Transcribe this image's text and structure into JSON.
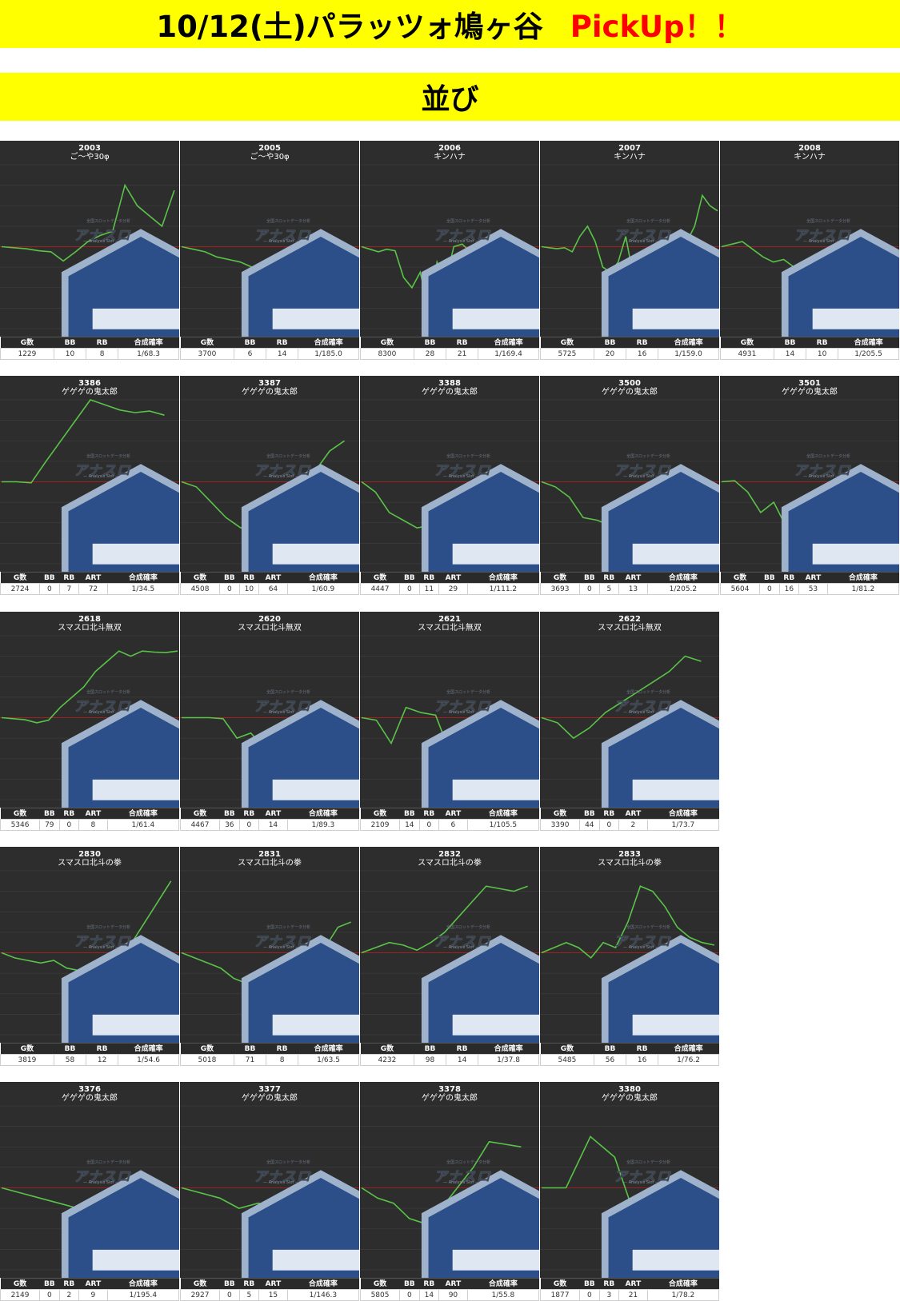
{
  "header": {
    "title": "10/12(土)パラッツォ鳩ヶ谷",
    "title_highlight": "PickUp！！",
    "subtitle": "並び"
  },
  "colors": {
    "banner_bg": "#ffff00",
    "highlight": "#ff0000",
    "chart_bg": "#2d2d2d",
    "line": "#59c447",
    "baseline": "#a02020"
  },
  "watermark": {
    "brand": "アナスロ",
    "tagline": "— Analysis Slot —",
    "top": "全国スロットデータ分析"
  },
  "groups": [
    {
      "headers": [
        "G数",
        "BB",
        "RB",
        "合成確率"
      ],
      "machines": [
        {
          "number": "2003",
          "name": "ご〜や30φ",
          "stats": [
            "1229",
            "10",
            "8",
            "1/68.3"
          ],
          "chart_data": {
            "type": "line",
            "y": [
              0,
              -2,
              -4,
              -8,
              -10,
              -28,
              -10,
              10,
              22,
              30,
              120,
              80,
              60,
              40,
              110
            ]
          }
        },
        {
          "number": "2005",
          "name": "ご〜や30φ",
          "stats": [
            "3700",
            "6",
            "14",
            "1/185.0"
          ],
          "chart_data": {
            "type": "line",
            "y": [
              0,
              -5,
              -10,
              -20,
              -25,
              -30,
              -40,
              -55,
              -45,
              -50,
              -60,
              -75,
              -90,
              -110,
              -140,
              -160
            ]
          }
        },
        {
          "number": "2006",
          "name": "キンハナ",
          "stats": [
            "8300",
            "28",
            "21",
            "1/169.4"
          ],
          "chart_data": {
            "type": "line",
            "y": [
              0,
              -5,
              -10,
              -5,
              -8,
              -60,
              -80,
              -50,
              -120,
              -30,
              -70,
              0,
              5,
              -10,
              -40,
              -20,
              -50,
              -30,
              -60,
              -70,
              -100,
              -60
            ]
          }
        },
        {
          "number": "2007",
          "name": "キンハナ",
          "stats": [
            "5725",
            "20",
            "16",
            "1/159.0"
          ],
          "chart_data": {
            "type": "line",
            "y": [
              0,
              -2,
              -4,
              -2,
              -10,
              20,
              40,
              10,
              -40,
              -50,
              -30,
              20,
              -60,
              -80,
              -60,
              -90,
              -70,
              -40,
              -50,
              10,
              40,
              100,
              80,
              70
            ]
          }
        },
        {
          "number": "2008",
          "name": "キンハナ",
          "stats": [
            "4931",
            "14",
            "10",
            "1/205.5"
          ],
          "chart_data": {
            "type": "line",
            "y": [
              0,
              5,
              10,
              -5,
              -20,
              -30,
              -25,
              -40,
              -30,
              -20,
              -30,
              -40,
              -25,
              -35,
              -70,
              -75,
              -80,
              -100
            ]
          }
        }
      ]
    },
    {
      "headers": [
        "G数",
        "BB",
        "RB",
        "ART",
        "合成確率"
      ],
      "machines": [
        {
          "number": "3386",
          "name": "ゲゲゲの鬼太郎",
          "stats": [
            "2724",
            "0",
            "7",
            "72",
            "1/34.5"
          ],
          "chart_data": {
            "type": "line",
            "y": [
              0,
              0,
              -2,
              40,
              80,
              120,
              160,
              150,
              140,
              135,
              138,
              130
            ]
          }
        },
        {
          "number": "3387",
          "name": "ゲゲゲの鬼太郎",
          "stats": [
            "4508",
            "0",
            "10",
            "64",
            "1/60.9"
          ],
          "chart_data": {
            "type": "line",
            "y": [
              0,
              -10,
              -40,
              -70,
              -90,
              -80,
              -70,
              -80,
              -20,
              20,
              60,
              80
            ]
          }
        },
        {
          "number": "3388",
          "name": "ゲゲゲの鬼太郎",
          "stats": [
            "4447",
            "0",
            "11",
            "29",
            "1/111.2"
          ],
          "chart_data": {
            "type": "line",
            "y": [
              0,
              -20,
              -60,
              -75,
              -90,
              -85,
              -80,
              -95,
              -90,
              -92,
              -90,
              -88,
              -100
            ]
          }
        },
        {
          "number": "3500",
          "name": "ゲゲゲの鬼太郎",
          "stats": [
            "3693",
            "0",
            "5",
            "13",
            "1/205.2"
          ],
          "chart_data": {
            "type": "line",
            "y": [
              0,
              -10,
              -30,
              -70,
              -75,
              -85,
              -90,
              -95,
              -95,
              -96,
              -98,
              -100,
              -110
            ]
          }
        },
        {
          "number": "3501",
          "name": "ゲゲゲの鬼太郎",
          "stats": [
            "5604",
            "0",
            "16",
            "53",
            "1/81.2"
          ],
          "chart_data": {
            "type": "line",
            "y": [
              0,
              2,
              -20,
              -60,
              -40,
              -90,
              -100,
              -50,
              -55,
              -45,
              -60,
              -70,
              -110,
              -110
            ]
          }
        }
      ]
    },
    {
      "headers": [
        "G数",
        "BB",
        "RB",
        "ART",
        "合成確率"
      ],
      "machines": [
        {
          "number": "2618",
          "name": "スマスロ北斗無双",
          "stats": [
            "5346",
            "79",
            "0",
            "8",
            "1/61.4"
          ],
          "chart_data": {
            "type": "line",
            "y": [
              0,
              -2,
              -4,
              -10,
              -5,
              20,
              40,
              60,
              90,
              110,
              130,
              120,
              130,
              128,
              127,
              130
            ]
          }
        },
        {
          "number": "2620",
          "name": "スマスロ北斗無双",
          "stats": [
            "4467",
            "36",
            "0",
            "14",
            "1/89.3"
          ],
          "chart_data": {
            "type": "line",
            "y": [
              0,
              0,
              0,
              -2,
              -40,
              -30,
              -60,
              -50,
              -40,
              -30,
              -20,
              -50,
              -30
            ]
          }
        },
        {
          "number": "2621",
          "name": "スマスロ北斗無双",
          "stats": [
            "2109",
            "14",
            "0",
            "6",
            "1/105.5"
          ],
          "chart_data": {
            "type": "line",
            "y": [
              0,
              -5,
              -50,
              20,
              10,
              5,
              -70,
              -65,
              -65,
              -65,
              -65,
              -65
            ]
          }
        },
        {
          "number": "2622",
          "name": "スマスロ北斗無双",
          "stats": [
            "3390",
            "44",
            "0",
            "2",
            "1/73.7"
          ],
          "chart_data": {
            "type": "line",
            "y": [
              0,
              -10,
              -40,
              -20,
              10,
              30,
              50,
              70,
              90,
              120,
              110
            ]
          }
        }
      ]
    },
    {
      "headers": [
        "G数",
        "BB",
        "RB",
        "合成確率"
      ],
      "machines": [
        {
          "number": "2830",
          "name": "スマスロ北斗の拳",
          "stats": [
            "3819",
            "58",
            "12",
            "1/54.6"
          ],
          "chart_data": {
            "type": "line",
            "y": [
              0,
              -10,
              -15,
              -20,
              -15,
              -30,
              -35,
              -45,
              -30,
              -10,
              20,
              60,
              100,
              140
            ]
          }
        },
        {
          "number": "2831",
          "name": "スマスロ北斗の拳",
          "stats": [
            "5018",
            "71",
            "8",
            "1/63.5"
          ],
          "chart_data": {
            "type": "line",
            "y": [
              0,
              -10,
              -20,
              -30,
              -50,
              -60,
              -70,
              -50,
              -60,
              -80,
              -40,
              10,
              50,
              60
            ]
          }
        },
        {
          "number": "2832",
          "name": "スマスロ北斗の拳",
          "stats": [
            "4232",
            "98",
            "14",
            "1/37.8"
          ],
          "chart_data": {
            "type": "line",
            "y": [
              0,
              10,
              20,
              15,
              5,
              20,
              40,
              70,
              100,
              130,
              125,
              120,
              130
            ]
          }
        },
        {
          "number": "2833",
          "name": "スマスロ北斗の拳",
          "stats": [
            "5485",
            "56",
            "16",
            "1/76.2"
          ],
          "chart_data": {
            "type": "line",
            "y": [
              0,
              10,
              20,
              10,
              -10,
              20,
              10,
              60,
              130,
              120,
              90,
              50,
              30,
              20,
              15
            ]
          }
        }
      ]
    },
    {
      "headers": [
        "G数",
        "BB",
        "RB",
        "ART",
        "合成確率"
      ],
      "machines": [
        {
          "number": "3376",
          "name": "ゲゲゲの鬼太郎",
          "stats": [
            "2149",
            "0",
            "2",
            "9",
            "1/195.4"
          ],
          "chart_data": {
            "type": "line",
            "y": [
              0,
              -10,
              -20,
              -30,
              -40,
              -60,
              -70,
              -75,
              -76
            ]
          }
        },
        {
          "number": "3377",
          "name": "ゲゲゲの鬼太郎",
          "stats": [
            "2927",
            "0",
            "5",
            "15",
            "1/146.3"
          ],
          "chart_data": {
            "type": "line",
            "y": [
              0,
              -10,
              -20,
              -40,
              -30,
              -35,
              -50,
              -70,
              -80
            ]
          }
        },
        {
          "number": "3378",
          "name": "ゲゲゲの鬼太郎",
          "stats": [
            "5805",
            "0",
            "14",
            "90",
            "1/55.8"
          ],
          "chart_data": {
            "type": "line",
            "y": [
              0,
              -20,
              -30,
              -60,
              -70,
              -40,
              0,
              40,
              90,
              85,
              80
            ]
          }
        },
        {
          "number": "3380",
          "name": "ゲゲゲの鬼太郎",
          "stats": [
            "1877",
            "0",
            "3",
            "21",
            "1/78.2"
          ],
          "chart_data": {
            "type": "line",
            "y": [
              0,
              0,
              100,
              60,
              -80,
              -30,
              -20
            ]
          }
        }
      ]
    }
  ]
}
